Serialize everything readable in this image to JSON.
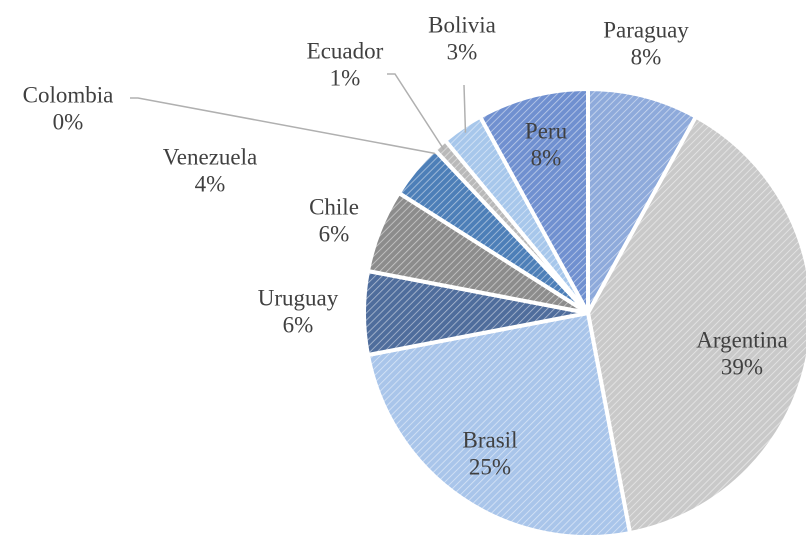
{
  "chart_data": {
    "type": "pie",
    "categories": [
      "Paraguay",
      "Argentina",
      "Brasil",
      "Uruguay",
      "Chile",
      "Venezuela",
      "Colombia",
      "Ecuador",
      "Bolivia",
      "Peru"
    ],
    "values": [
      8,
      39,
      25,
      6,
      6,
      4,
      0,
      1,
      3,
      8
    ],
    "value_labels": [
      "8%",
      "39%",
      "25%",
      "6%",
      "6%",
      "4%",
      "0%",
      "1%",
      "3%",
      "8%"
    ],
    "colors": [
      "#8eaadb",
      "#c9c9c9",
      "#a9c5ea",
      "#4f6d9c",
      "#8c8c8c",
      "#4d7fb8",
      "#9fb3cf",
      "#b9b9b9",
      "#a7c7eb",
      "#7090d0"
    ]
  }
}
